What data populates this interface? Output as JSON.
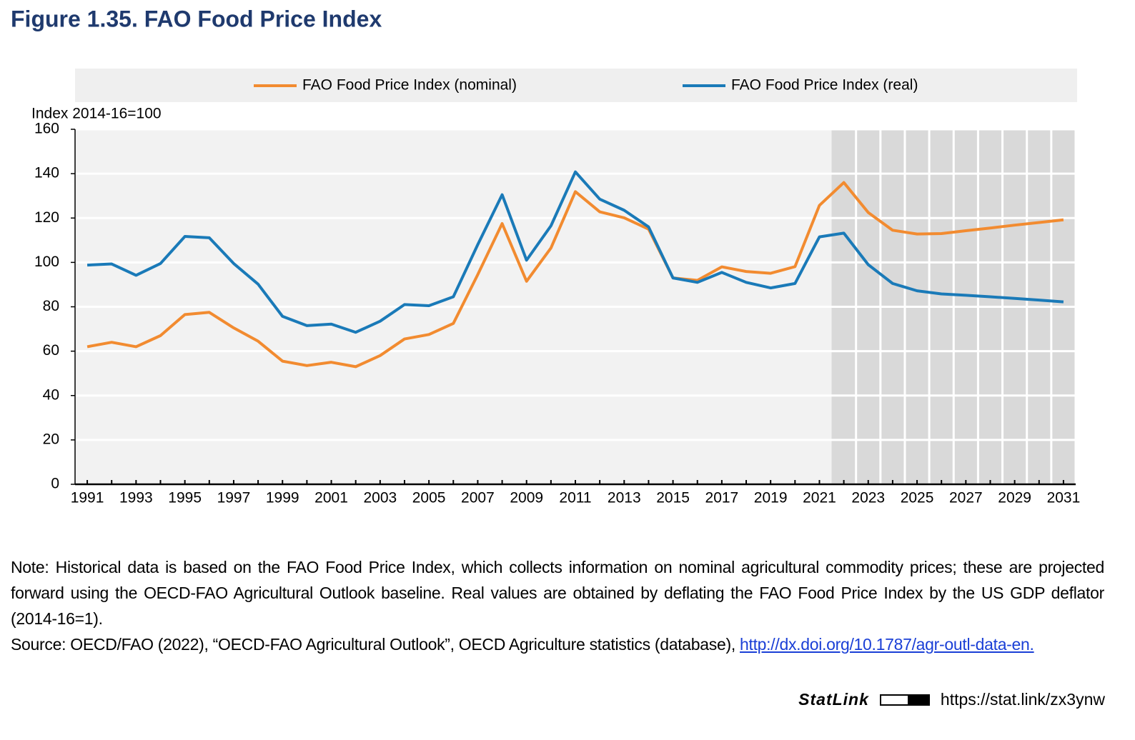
{
  "chart_data": {
    "type": "line",
    "title": "Figure 1.35. FAO Food Price Index",
    "y_label": "Index 2014-16=100",
    "x": [
      1991,
      1992,
      1993,
      1994,
      1995,
      1996,
      1997,
      1998,
      1999,
      2000,
      2001,
      2002,
      2003,
      2004,
      2005,
      2006,
      2007,
      2008,
      2009,
      2010,
      2011,
      2012,
      2013,
      2014,
      2015,
      2016,
      2017,
      2018,
      2019,
      2020,
      2021,
      2022,
      2023,
      2024,
      2025,
      2026,
      2027,
      2028,
      2029,
      2030,
      2031
    ],
    "series": [
      {
        "name": "FAO Food Price Index (nominal)",
        "color": "#f28b30",
        "values": [
          62,
          64,
          62,
          67,
          76.5,
          77.5,
          70.5,
          64.5,
          55.5,
          53.5,
          55,
          53,
          58,
          65.5,
          67.5,
          72.5,
          94.5,
          117.5,
          91.5,
          106.5,
          131.9,
          122.8,
          120.1,
          115,
          93,
          91.9,
          98,
          95.9,
          95.1,
          98.1,
          125.7,
          136,
          122.5,
          114.5,
          112.8,
          113,
          114.3,
          115.5,
          116.8,
          118,
          119.2
        ]
      },
      {
        "name": "FAO Food Price Index (real)",
        "color": "#1a7ab8",
        "values": [
          98.8,
          99.3,
          94.2,
          99.5,
          111.7,
          111.1,
          99.5,
          90.2,
          75.7,
          71.5,
          72.2,
          68.5,
          73.5,
          81,
          80.5,
          84.5,
          108,
          130.5,
          101,
          116.5,
          140.8,
          128.5,
          123.5,
          116,
          93,
          91,
          95.5,
          91,
          88.5,
          90.5,
          111.5,
          113.2,
          99,
          90.5,
          87.2,
          85.8,
          85.2,
          84.5,
          83.8,
          83,
          82.2
        ]
      }
    ],
    "xlim": [
      1990.5,
      2031.5
    ],
    "xticks": [
      1991,
      1993,
      1995,
      1997,
      1999,
      2001,
      2003,
      2005,
      2007,
      2009,
      2011,
      2013,
      2015,
      2017,
      2019,
      2021,
      2023,
      2025,
      2027,
      2029,
      2031
    ],
    "ylim": [
      0,
      160
    ],
    "yticks": [
      0,
      20,
      40,
      60,
      80,
      100,
      120,
      140,
      160
    ],
    "projection_xlim": [
      2021.5,
      2031.5
    ],
    "grid": true,
    "legend": "top"
  },
  "notes": {
    "note": "Note: Historical data is based on the FAO Food Price Index, which collects information on nominal agricultural commodity prices; these are projected forward using the OECD-FAO Agricultural Outlook baseline. Real values are obtained by deflating the FAO Food Price Index by the US GDP deflator (2014-16=1).",
    "source": "Source: OECD/FAO (2022), “OECD-FAO Agricultural Outlook”, OECD Agriculture statistics (database),",
    "source_link": "http://dx.doi.org/10.1787/agr-outl-data-en.",
    "statlink_brand": "StatLink",
    "statlink_url": "https://stat.link/zx3ynw"
  }
}
